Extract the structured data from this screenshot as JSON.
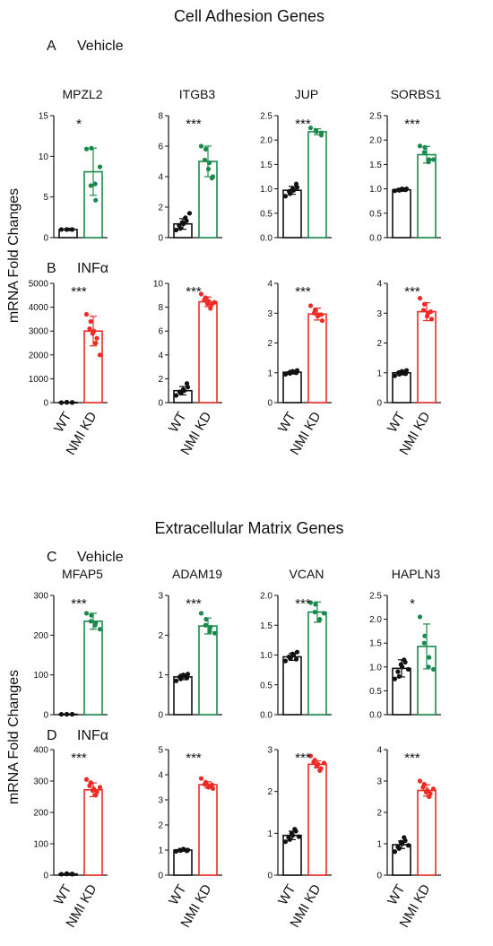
{
  "figure": {
    "section1_title": "Cell Adhesion Genes",
    "section2_title": "Extracellular Matrix Genes",
    "ylabel": "mRNA Fold Changes",
    "colors": {
      "vehicle": "#1a8a4a",
      "infa": "#ee2a24",
      "wt": "#111111"
    }
  },
  "panels": [
    {
      "letter": "A",
      "label": "Vehicle"
    },
    {
      "letter": "B",
      "label": "INFα"
    },
    {
      "letter": "C",
      "label": "Vehicle"
    },
    {
      "letter": "D",
      "label": "INFα"
    }
  ],
  "chart_data": [
    {
      "type": "bar",
      "panel": "A",
      "title": "MPZL2",
      "categories": [
        "WT",
        "NMI KD"
      ],
      "values": [
        1.0,
        8.1
      ],
      "errors": [
        0.15,
        2.9
      ],
      "points": [
        [
          1.0,
          1.0,
          1.0,
          1.0,
          1.0
        ],
        [
          10.9,
          11.0,
          6.4,
          4.6,
          6.6,
          8.7
        ]
      ],
      "ylim": [
        0,
        15
      ],
      "yticks": [
        0,
        5,
        10,
        15
      ],
      "significance": "*",
      "condition": "vehicle"
    },
    {
      "type": "bar",
      "panel": "A",
      "title": "ITGB3",
      "categories": [
        "WT",
        "NMI KD"
      ],
      "values": [
        0.9,
        5.0
      ],
      "errors": [
        0.35,
        1.0
      ],
      "points": [
        [
          0.5,
          0.6,
          0.8,
          0.9,
          1.0,
          1.1,
          1.3,
          1.6
        ],
        [
          6.0,
          5.8,
          5.1,
          4.9,
          4.5,
          4.0,
          3.9
        ]
      ],
      "ylim": [
        0,
        8
      ],
      "yticks": [
        0,
        2,
        4,
        6,
        8
      ],
      "significance": "***",
      "condition": "vehicle"
    },
    {
      "type": "bar",
      "panel": "A",
      "title": "JUP",
      "categories": [
        "WT",
        "NMI KD"
      ],
      "values": [
        0.97,
        2.17
      ],
      "errors": [
        0.08,
        0.06
      ],
      "points": [
        [
          0.85,
          0.9,
          0.95,
          0.97,
          1.0,
          1.03,
          1.1
        ],
        [
          2.25,
          2.2,
          2.18,
          2.15,
          2.1
        ]
      ],
      "ylim": [
        0,
        2.5
      ],
      "yticks": [
        0,
        0.5,
        1.0,
        1.5,
        2.0,
        2.5
      ],
      "significance": "***",
      "condition": "vehicle"
    },
    {
      "type": "bar",
      "panel": "A",
      "title": "SORBS1",
      "categories": [
        "WT",
        "NMI KD"
      ],
      "values": [
        0.98,
        1.7
      ],
      "errors": [
        0.03,
        0.17
      ],
      "points": [
        [
          0.96,
          0.97,
          0.98,
          0.99,
          1.0,
          1.0,
          0.98
        ],
        [
          1.88,
          1.85,
          1.75,
          1.6,
          1.55,
          1.6
        ]
      ],
      "ylim": [
        0,
        2.5
      ],
      "yticks": [
        0,
        0.5,
        1.0,
        1.5,
        2.0,
        2.5
      ],
      "significance": "***",
      "condition": "vehicle"
    },
    {
      "type": "bar",
      "panel": "B",
      "title": "",
      "categories": [
        "WT",
        "NMI KD"
      ],
      "values": [
        10,
        3000
      ],
      "errors": [
        5,
        620
      ],
      "points": [
        [
          0,
          10,
          20,
          5,
          10
        ],
        [
          3700,
          3400,
          3100,
          3000,
          2900,
          2700,
          2500,
          2000
        ]
      ],
      "ylim": [
        0,
        5000
      ],
      "yticks": [
        0,
        1000,
        2000,
        3000,
        4000,
        5000
      ],
      "significance": "***",
      "condition": "infa"
    },
    {
      "type": "bar",
      "panel": "B",
      "title": "",
      "categories": [
        "WT",
        "NMI KD"
      ],
      "values": [
        1.0,
        8.45
      ],
      "errors": [
        0.35,
        0.4
      ],
      "points": [
        [
          0.6,
          0.8,
          0.9,
          1.0,
          1.1,
          1.3,
          1.6
        ],
        [
          9.1,
          8.8,
          8.6,
          8.5,
          8.3,
          8.2,
          7.9,
          8.4
        ]
      ],
      "ylim": [
        0,
        10
      ],
      "yticks": [
        0,
        2,
        4,
        6,
        8,
        10
      ],
      "significance": "***",
      "condition": "infa"
    },
    {
      "type": "bar",
      "panel": "B",
      "title": "",
      "categories": [
        "WT",
        "NMI KD"
      ],
      "values": [
        1.02,
        2.97
      ],
      "errors": [
        0.06,
        0.2
      ],
      "points": [
        [
          0.95,
          0.98,
          1.0,
          1.02,
          1.05,
          1.08,
          1.0
        ],
        [
          3.25,
          3.1,
          3.0,
          2.95,
          2.9,
          2.75,
          2.95
        ]
      ],
      "ylim": [
        0,
        4
      ],
      "yticks": [
        0,
        1,
        2,
        3,
        4
      ],
      "significance": "***",
      "condition": "infa"
    },
    {
      "type": "bar",
      "panel": "B",
      "title": "",
      "categories": [
        "WT",
        "NMI KD"
      ],
      "values": [
        1.0,
        3.05
      ],
      "errors": [
        0.07,
        0.3
      ],
      "points": [
        [
          0.9,
          0.95,
          1.0,
          1.02,
          1.05,
          1.08,
          0.97
        ],
        [
          3.5,
          3.3,
          3.1,
          3.0,
          2.9,
          2.8,
          3.05
        ]
      ],
      "ylim": [
        0,
        4
      ],
      "yticks": [
        0,
        1,
        2,
        3,
        4
      ],
      "significance": "***",
      "condition": "infa"
    },
    {
      "type": "bar",
      "panel": "C",
      "title": "MFAP5",
      "categories": [
        "WT",
        "NMI KD"
      ],
      "values": [
        1,
        235
      ],
      "errors": [
        0.5,
        20
      ],
      "points": [
        [
          1,
          1,
          1,
          1,
          1
        ],
        [
          255,
          250,
          235,
          230,
          225,
          215
        ]
      ],
      "ylim": [
        0,
        300
      ],
      "yticks": [
        0,
        100,
        200,
        300
      ],
      "significance": "***",
      "condition": "vehicle"
    },
    {
      "type": "bar",
      "panel": "C",
      "title": "ADAM19",
      "categories": [
        "WT",
        "NMI KD"
      ],
      "values": [
        0.95,
        2.23
      ],
      "errors": [
        0.07,
        0.2
      ],
      "points": [
        [
          0.85,
          0.9,
          0.95,
          0.97,
          1.0,
          1.02,
          0.92
        ],
        [
          2.55,
          2.4,
          2.25,
          2.2,
          2.1,
          2.05
        ]
      ],
      "ylim": [
        0,
        3
      ],
      "yticks": [
        0,
        1,
        2,
        3
      ],
      "significance": "***",
      "condition": "vehicle"
    },
    {
      "type": "bar",
      "panel": "C",
      "title": "VCAN",
      "categories": [
        "WT",
        "NMI KD"
      ],
      "values": [
        0.97,
        1.72
      ],
      "errors": [
        0.06,
        0.17
      ],
      "points": [
        [
          0.9,
          0.95,
          0.97,
          1.0,
          1.02,
          1.05,
          0.93
        ],
        [
          1.88,
          1.85,
          1.72,
          1.6,
          1.58,
          1.7
        ]
      ],
      "ylim": [
        0,
        2.0
      ],
      "yticks": [
        0,
        0.5,
        1.0,
        1.5,
        2.0
      ],
      "significance": "***",
      "condition": "vehicle"
    },
    {
      "type": "bar",
      "panel": "C",
      "title": "HAPLN3",
      "categories": [
        "WT",
        "NMI KD"
      ],
      "values": [
        0.97,
        1.43
      ],
      "errors": [
        0.18,
        0.47
      ],
      "points": [
        [
          0.75,
          0.8,
          0.9,
          1.0,
          1.05,
          1.1,
          1.15,
          0.95
        ],
        [
          2.05,
          1.65,
          1.5,
          1.2,
          1.0,
          0.95
        ]
      ],
      "ylim": [
        0,
        2.5
      ],
      "yticks": [
        0,
        0.5,
        1.0,
        1.5,
        2.0,
        2.5
      ],
      "significance": "*",
      "condition": "vehicle"
    },
    {
      "type": "bar",
      "panel": "D",
      "title": "",
      "categories": [
        "WT",
        "NMI KD"
      ],
      "values": [
        4,
        272
      ],
      "errors": [
        2,
        22
      ],
      "points": [
        [
          3,
          4,
          5,
          4,
          3
        ],
        [
          305,
          295,
          285,
          275,
          270,
          265,
          255,
          280
        ]
      ],
      "ylim": [
        0,
        400
      ],
      "yticks": [
        0,
        100,
        200,
        300,
        400
      ],
      "significance": "***",
      "condition": "infa"
    },
    {
      "type": "bar",
      "panel": "D",
      "title": "",
      "categories": [
        "WT",
        "NMI KD"
      ],
      "values": [
        1.0,
        3.6
      ],
      "errors": [
        0.05,
        0.12
      ],
      "points": [
        [
          0.95,
          0.98,
          1.0,
          1.02,
          1.04,
          1.0,
          0.97
        ],
        [
          3.85,
          3.7,
          3.62,
          3.55,
          3.5,
          3.45,
          3.6
        ]
      ],
      "ylim": [
        0,
        5
      ],
      "yticks": [
        0,
        1,
        2,
        3,
        4,
        5
      ],
      "significance": "***",
      "condition": "infa"
    },
    {
      "type": "bar",
      "panel": "D",
      "title": "",
      "categories": [
        "WT",
        "NMI KD"
      ],
      "values": [
        0.95,
        2.65
      ],
      "errors": [
        0.1,
        0.08
      ],
      "points": [
        [
          0.8,
          0.85,
          0.9,
          0.95,
          1.0,
          1.05,
          1.1,
          0.92
        ],
        [
          2.85,
          2.75,
          2.7,
          2.65,
          2.6,
          2.55,
          2.5,
          2.68
        ]
      ],
      "ylim": [
        0,
        3
      ],
      "yticks": [
        0,
        1,
        2,
        3
      ],
      "significance": "***",
      "condition": "infa"
    },
    {
      "type": "bar",
      "panel": "D",
      "title": "",
      "categories": [
        "WT",
        "NMI KD"
      ],
      "values": [
        0.97,
        2.7
      ],
      "errors": [
        0.12,
        0.18
      ],
      "points": [
        [
          0.75,
          0.85,
          0.9,
          1.0,
          1.05,
          1.1,
          1.2,
          0.95
        ],
        [
          3.0,
          2.9,
          2.8,
          2.7,
          2.65,
          2.6,
          2.5,
          2.75
        ]
      ],
      "ylim": [
        0,
        4
      ],
      "yticks": [
        0,
        1,
        2,
        3,
        4
      ],
      "significance": "***",
      "condition": "infa"
    }
  ]
}
